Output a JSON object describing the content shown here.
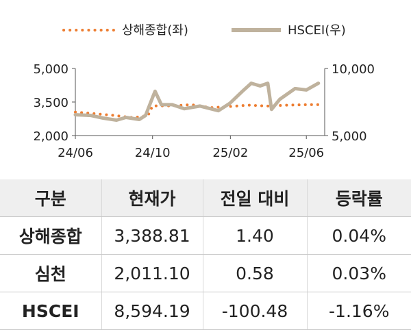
{
  "chart_data": {
    "type": "line",
    "legend": {
      "placement": "top",
      "items": [
        {
          "series": 0,
          "label": "상해종합(좌)"
        },
        {
          "series": 1,
          "label": "HSCEI(우)"
        }
      ]
    },
    "x_ticks": [
      "24/06",
      "24/10",
      "25/02",
      "25/06"
    ],
    "x_range": [
      "2024-06-01",
      "2025-06-30"
    ],
    "y_left": {
      "range": [
        2000,
        5000
      ],
      "ticks": [
        "5,000",
        "3,500",
        "2,000"
      ],
      "tick_values": [
        5000,
        3500,
        2000
      ]
    },
    "y_right": {
      "range": [
        5000,
        10000
      ],
      "ticks": [
        "10,000",
        "5,000"
      ],
      "tick_values": [
        10000,
        5000
      ]
    },
    "grid": false,
    "series": [
      {
        "axis": "left",
        "style": "dotted",
        "color": "#ED7D31",
        "points": [
          [
            "2024-06-01",
            3050
          ],
          [
            "2024-07-01",
            2980
          ],
          [
            "2024-08-01",
            2900
          ],
          [
            "2024-09-01",
            2800
          ],
          [
            "2024-09-24",
            2900
          ],
          [
            "2024-10-01",
            3330
          ],
          [
            "2024-11-01",
            3330
          ],
          [
            "2024-12-01",
            3380
          ],
          [
            "2025-01-01",
            3250
          ],
          [
            "2025-02-01",
            3300
          ],
          [
            "2025-03-01",
            3360
          ],
          [
            "2025-04-01",
            3320
          ],
          [
            "2025-05-01",
            3360
          ],
          [
            "2025-06-01",
            3380
          ],
          [
            "2025-06-20",
            3380
          ]
        ]
      },
      {
        "axis": "right",
        "style": "solid",
        "color": "#BFB29D",
        "points": [
          [
            "2024-06-01",
            6550
          ],
          [
            "2024-06-25",
            6500
          ],
          [
            "2024-07-15",
            6300
          ],
          [
            "2024-08-05",
            6150
          ],
          [
            "2024-08-20",
            6350
          ],
          [
            "2024-09-10",
            6200
          ],
          [
            "2024-09-20",
            6500
          ],
          [
            "2024-10-02",
            7950
          ],
          [
            "2024-10-05",
            8300
          ],
          [
            "2024-10-15",
            7300
          ],
          [
            "2024-11-01",
            7300
          ],
          [
            "2024-11-20",
            7000
          ],
          [
            "2024-12-15",
            7200
          ],
          [
            "2025-01-13",
            6850
          ],
          [
            "2025-01-31",
            7400
          ],
          [
            "2025-02-20",
            8300
          ],
          [
            "2025-03-06",
            8900
          ],
          [
            "2025-03-20",
            8700
          ],
          [
            "2025-04-01",
            8900
          ],
          [
            "2025-04-07",
            6950
          ],
          [
            "2025-04-20",
            7700
          ],
          [
            "2025-05-14",
            8500
          ],
          [
            "2025-06-01",
            8400
          ],
          [
            "2025-06-20",
            8900
          ]
        ]
      }
    ]
  },
  "table": {
    "headers": [
      "구분",
      "현재가",
      "전일 대비",
      "등락률"
    ],
    "rows": [
      [
        "상해종합",
        "3,388.81",
        "1.40",
        "0.04%"
      ],
      [
        "심천",
        "2,011.10",
        "0.58",
        "0.03%"
      ],
      [
        "HSCEI",
        "8,594.19",
        "-100.48",
        "-1.16%"
      ]
    ]
  }
}
